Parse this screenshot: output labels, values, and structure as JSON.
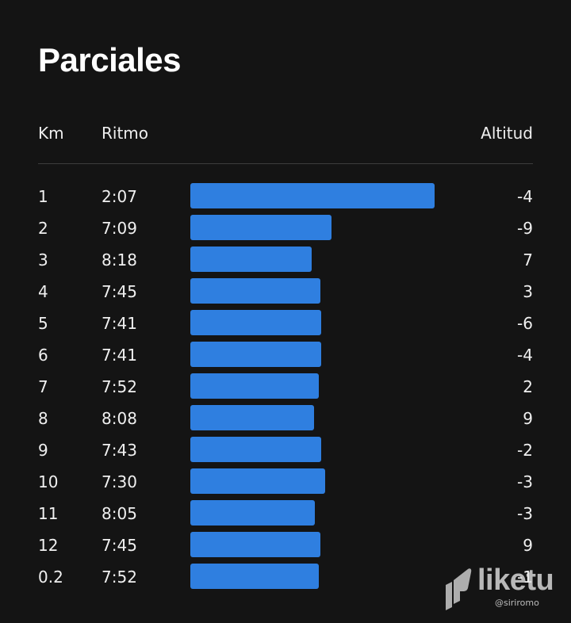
{
  "title": "Parciales",
  "columns": {
    "km": "Km",
    "pace": "Ritmo",
    "altitude": "Altitud"
  },
  "splits": [
    {
      "km": "1",
      "pace": "2:07",
      "altitude": "-4",
      "pace_seconds": 127
    },
    {
      "km": "2",
      "pace": "7:09",
      "altitude": "-9",
      "pace_seconds": 429
    },
    {
      "km": "3",
      "pace": "8:18",
      "altitude": "7",
      "pace_seconds": 498
    },
    {
      "km": "4",
      "pace": "7:45",
      "altitude": "3",
      "pace_seconds": 465
    },
    {
      "km": "5",
      "pace": "7:41",
      "altitude": "-6",
      "pace_seconds": 461
    },
    {
      "km": "6",
      "pace": "7:41",
      "altitude": "-4",
      "pace_seconds": 461
    },
    {
      "km": "7",
      "pace": "7:52",
      "altitude": "2",
      "pace_seconds": 472
    },
    {
      "km": "8",
      "pace": "8:08",
      "altitude": "9",
      "pace_seconds": 488
    },
    {
      "km": "9",
      "pace": "7:43",
      "altitude": "-2",
      "pace_seconds": 463
    },
    {
      "km": "10",
      "pace": "7:30",
      "altitude": "-3",
      "pace_seconds": 450
    },
    {
      "km": "11",
      "pace": "8:05",
      "altitude": "-3",
      "pace_seconds": 485
    },
    {
      "km": "12",
      "pace": "7:45",
      "altitude": "9",
      "pace_seconds": 465
    },
    {
      "km": "0.2",
      "pace": "7:52",
      "altitude": "-1",
      "pace_seconds": 472
    }
  ],
  "bar_color": "#2f7fe0",
  "watermark": {
    "brand": "liketu",
    "handle": "@siriromo",
    "icon": "liketu-logo-icon"
  }
}
